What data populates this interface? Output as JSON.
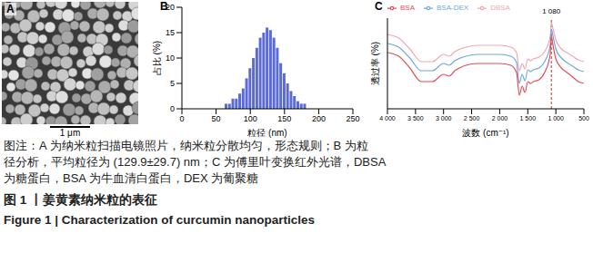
{
  "image": {
    "panel_label": "A",
    "scale_bar": "1 μm"
  },
  "chart_data": [
    {
      "type": "histogram",
      "panel_label": "B",
      "x_label": "粒径 (nm)",
      "y_label": "占比 (%)",
      "bins": [
        62.5,
        67.5,
        72.5,
        77.5,
        82.5,
        87.5,
        92.5,
        97.5,
        102.5,
        107.5,
        112.5,
        117.5,
        122.5,
        127.5,
        132.5,
        137.5,
        142.5,
        147.5,
        152.5,
        157.5,
        162.5,
        167.5,
        172.5,
        177.5,
        182.5
      ],
      "counts": [
        1,
        1,
        2,
        2,
        3,
        4,
        6,
        8,
        10,
        12,
        14,
        15,
        16,
        15.5,
        14,
        12,
        9,
        7,
        5,
        3.5,
        2.5,
        1.5,
        1,
        1
      ],
      "color": "#5b6bd5",
      "xlim": [
        0,
        250
      ],
      "xticks": [
        0,
        50,
        100,
        150,
        200,
        250
      ],
      "ylim": [
        0,
        20
      ],
      "yticks": [
        0,
        5,
        10,
        15,
        20
      ]
    },
    {
      "type": "line",
      "panel_label": "C",
      "x_label": "波数 (cm⁻¹)",
      "y_label": "透过率 (%)",
      "x": [
        4000,
        3800,
        3600,
        3400,
        3200,
        3000,
        2900,
        2800,
        2600,
        2400,
        2200,
        2000,
        1800,
        1700,
        1650,
        1600,
        1550,
        1500,
        1450,
        1400,
        1300,
        1200,
        1100,
        1080,
        1050,
        1000,
        900,
        800,
        700,
        600,
        500
      ],
      "series": [
        {
          "name": "DBSA",
          "color": "#f2a7b5",
          "values": [
            82,
            78,
            66,
            52,
            52,
            60,
            58,
            63,
            68,
            70,
            70,
            70,
            68,
            62,
            42,
            50,
            44,
            55,
            53,
            55,
            57,
            63,
            80,
            95,
            88,
            76,
            66,
            62,
            58,
            54,
            52
          ]
        },
        {
          "name": "BSA-DEX",
          "color": "#6fa8dc",
          "values": [
            72,
            68,
            56,
            42,
            42,
            50,
            48,
            53,
            58,
            60,
            60,
            60,
            58,
            51,
            28,
            38,
            31,
            43,
            41,
            43,
            45,
            52,
            70,
            88,
            80,
            66,
            56,
            51,
            47,
            43,
            41
          ]
        },
        {
          "name": "BSA",
          "color": "#e0505a",
          "values": [
            62,
            58,
            45,
            30,
            30,
            38,
            36,
            42,
            48,
            50,
            50,
            50,
            48,
            40,
            15,
            25,
            18,
            30,
            28,
            30,
            32,
            40,
            60,
            80,
            70,
            55,
            45,
            40,
            35,
            30,
            28
          ]
        }
      ],
      "xlim": [
        4000,
        500
      ],
      "xticks": [
        {
          "value": 4000,
          "label": "4 000"
        },
        {
          "value": 3500,
          "label": "3 500"
        },
        {
          "value": 3000,
          "label": "3 000"
        },
        {
          "value": 2500,
          "label": "2 500"
        },
        {
          "value": 2000,
          "label": "2 000"
        },
        {
          "value": 1500,
          "label": "1 500"
        },
        {
          "value": 1000,
          "label": "1 000"
        },
        500
      ],
      "ylim": [
        0,
        100
      ],
      "tick_labels": "x",
      "legend": "top",
      "annotations": [
        {
          "text": "1 080",
          "x": 1080
        }
      ]
    }
  ],
  "caption": {
    "lines": [
      "图注：A 为纳米粒扫描电镜照片，纳米粒分散均匀，形态规则；B 为粒",
      "径分析，平均粒径为 (129.9±29.7) nm；C 为傅里叶变换红外光谱，DBSA",
      "为糖蛋白，BSA 为牛血清白蛋白，DEX 为葡聚糖"
    ],
    "figure_title_zh": "图 1 丨姜黄素纳米粒的表征",
    "figure_title_en": "Figure 1  |  Characterization of curcumin nanoparticles"
  }
}
